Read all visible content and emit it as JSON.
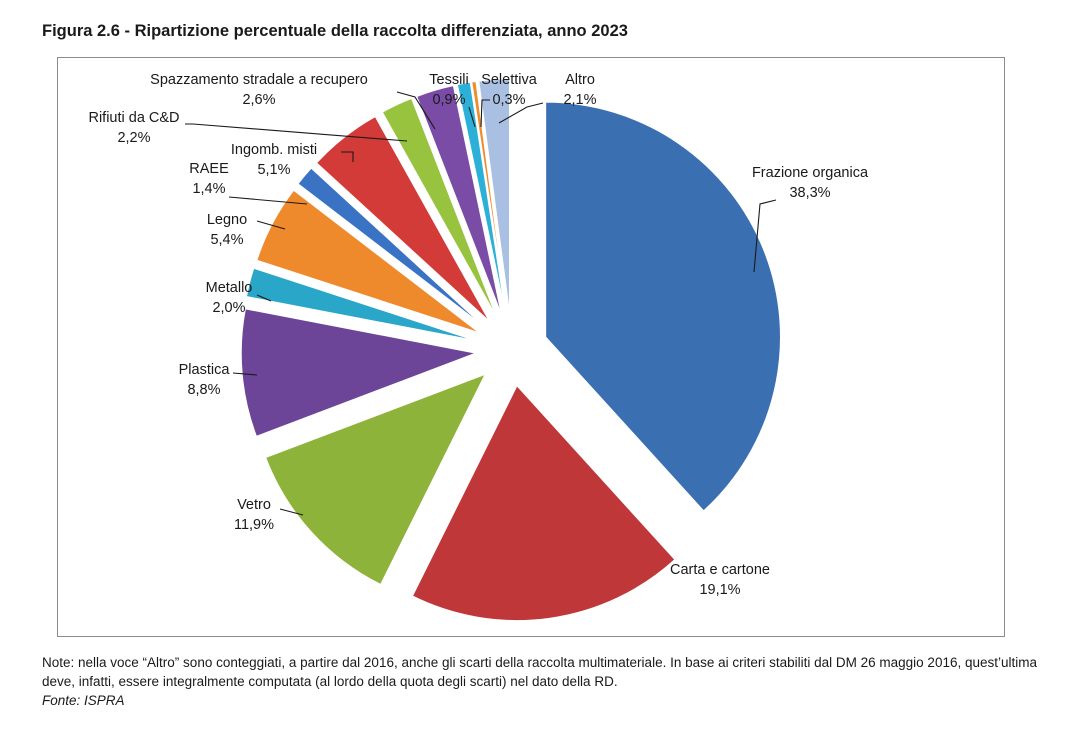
{
  "figure": {
    "title": "Figura 2.6 - Ripartizione percentuale della raccolta differenziata, anno 2023",
    "note": "Note: nella voce “Altro” sono conteggiati, a partire dal 2016, anche gli scarti della raccolta multimateriale. In base ai criteri stabiliti dal DM 26 maggio 2016, quest’ultima deve, infatti, essere integralmente computata (al lordo della quota degli scarti) nel dato della RD.",
    "source": "Fonte: ISPRA"
  },
  "chart_data": {
    "type": "pie",
    "title": "",
    "exploded": true,
    "start": "top, clockwise",
    "slices": [
      {
        "name": "Frazione organica",
        "value": 38.3,
        "label": "38,3%",
        "color": "#3a6fb2"
      },
      {
        "name": "Carta e cartone",
        "value": 19.1,
        "label": "19,1%",
        "color": "#c0373a"
      },
      {
        "name": "Vetro",
        "value": 11.9,
        "label": "11,9%",
        "color": "#8db33a"
      },
      {
        "name": "Plastica",
        "value": 8.8,
        "label": "8,8%",
        "color": "#6c4498"
      },
      {
        "name": "Metallo",
        "value": 2.0,
        "label": "2,0%",
        "color": "#2aa6c9"
      },
      {
        "name": "Legno",
        "value": 5.4,
        "label": "5,4%",
        "color": "#ef8a2c"
      },
      {
        "name": "RAEE",
        "value": 1.4,
        "label": "1,4%",
        "color": "#3b73c4"
      },
      {
        "name": "Ingomb. misti",
        "value": 5.1,
        "label": "5,1%",
        "color": "#d33b38"
      },
      {
        "name": "Rifiuti da C&D",
        "value": 2.2,
        "label": "2,2%",
        "color": "#97c33f"
      },
      {
        "name": "Spazzamento stradale a recupero",
        "value": 2.6,
        "label": "2,6%",
        "color": "#7a4ca6"
      },
      {
        "name": "Tessili",
        "value": 0.9,
        "label": "0,9%",
        "color": "#2db0d8"
      },
      {
        "name": "Selettiva",
        "value": 0.3,
        "label": "0,3%",
        "color": "#ef8c2d"
      },
      {
        "name": "Altro",
        "value": 2.1,
        "label": "2,1%",
        "color": "#a9c0e2"
      }
    ]
  }
}
